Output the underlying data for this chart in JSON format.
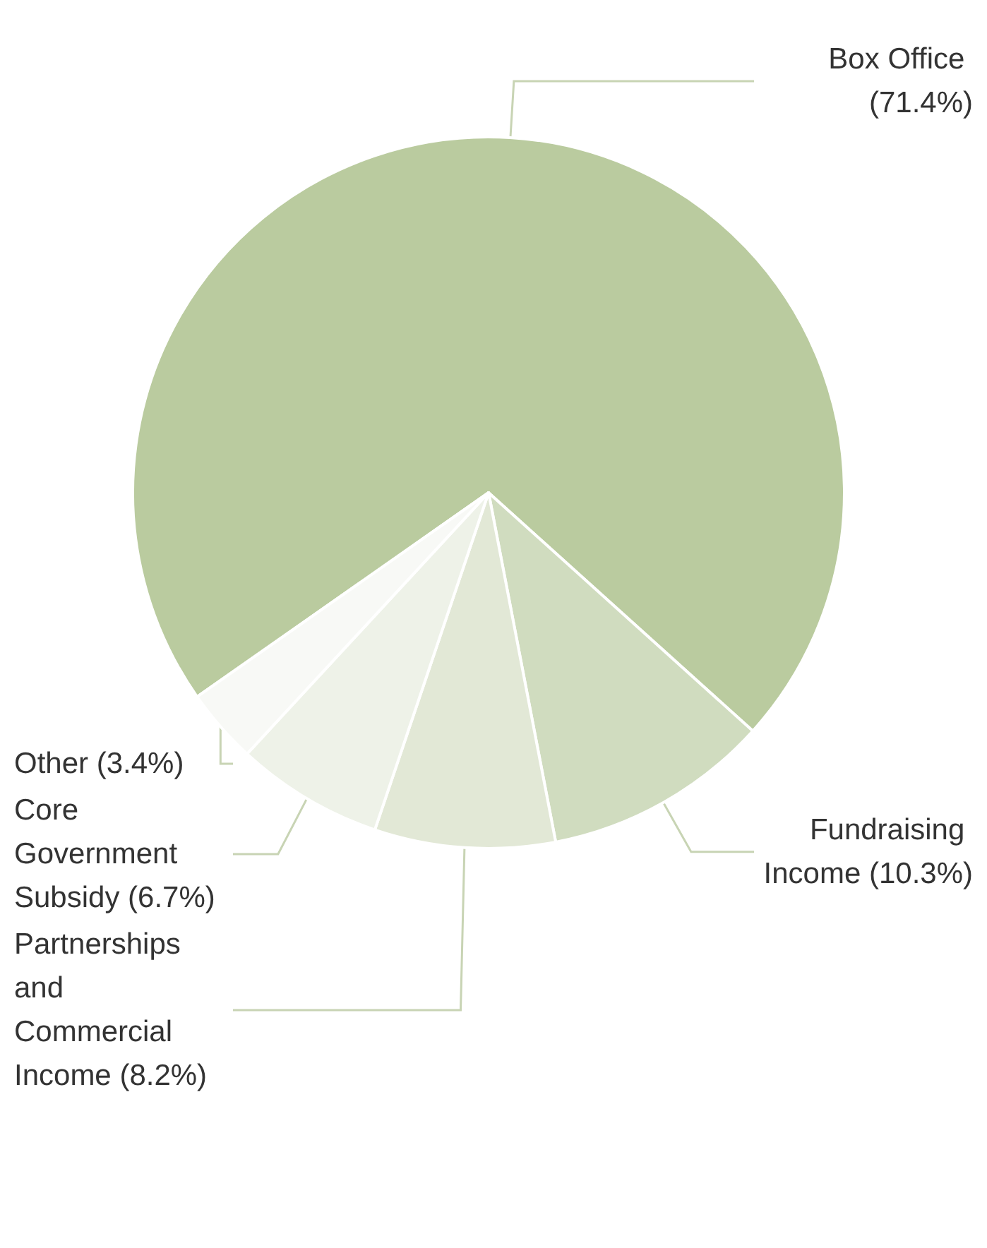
{
  "chart_data": {
    "type": "pie",
    "categories": [
      "Box Office",
      "Fundraising Income",
      "Partnerships and Commercial Income",
      "Core Government Subsidy",
      "Other"
    ],
    "values": [
      71.4,
      10.3,
      8.2,
      6.7,
      3.4
    ],
    "value_labels": [
      "(71.4%)",
      "(10.3%)",
      "(8.2%)",
      "(6.7%)",
      "(3.4%)"
    ],
    "colors": [
      "#bacb9f",
      "#d0dcbf",
      "#e2e8d6",
      "#eef2e8",
      "#f8f9f6"
    ]
  }
}
